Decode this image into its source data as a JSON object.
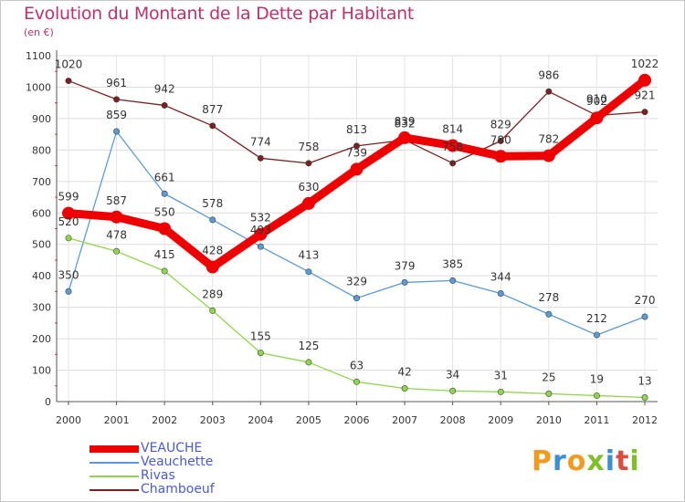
{
  "title": "Evolution du Montant de la Dette par Habitant",
  "subtitle": "(en €)",
  "logo": {
    "text": "Proxiti",
    "colors": [
      "#f39a1e",
      "#3b8fd6",
      "#f39a1e",
      "#7fbf2a",
      "#3b8fd6",
      "#e04a3c",
      "#7fbf2a"
    ]
  },
  "chart_data": {
    "type": "line",
    "title": "Evolution du Montant de la Dette par Habitant",
    "subtitle": "(en €)",
    "xlabel": "",
    "ylabel": "",
    "ylim": [
      0,
      1100
    ],
    "yticks": [
      0,
      100,
      200,
      300,
      400,
      500,
      600,
      700,
      800,
      900,
      1000,
      1100
    ],
    "grid": true,
    "legend_position": "bottom-left",
    "categories": [
      "2000",
      "2001",
      "2002",
      "2003",
      "2004",
      "2005",
      "2006",
      "2007",
      "2008",
      "2009",
      "2010",
      "2011",
      "2012"
    ],
    "series": [
      {
        "name": "VEAUCHE",
        "color": "#ee0000",
        "emphasis": true,
        "values": [
          599,
          587,
          550,
          428,
          532,
          630,
          739,
          839,
          814,
          780,
          782,
          902,
          1022
        ],
        "labels": [
          "599",
          "587",
          "550",
          "428",
          "532",
          "630",
          "739",
          "839",
          "814",
          "780",
          "782",
          "902",
          "1022"
        ]
      },
      {
        "name": "Veauchette",
        "color": "#5b9bd5",
        "values": [
          350,
          859,
          661,
          578,
          493,
          413,
          329,
          379,
          385,
          344,
          278,
          212,
          270
        ],
        "labels": [
          "350",
          "859",
          "661",
          "578",
          "493",
          "413",
          "329",
          "379",
          "385",
          "344",
          "278",
          "212",
          "270"
        ]
      },
      {
        "name": "Rivas",
        "color": "#8fd64a",
        "values": [
          520,
          478,
          415,
          289,
          155,
          125,
          63,
          42,
          34,
          31,
          25,
          19,
          13
        ],
        "labels": [
          "520",
          "478",
          "415",
          "289",
          "155",
          "125",
          "63",
          "42",
          "34",
          "31",
          "25",
          "19",
          "13"
        ]
      },
      {
        "name": "Chamboeuf",
        "color": "#7a2020",
        "values": [
          1020,
          961,
          942,
          877,
          774,
          758,
          813,
          832,
          758,
          829,
          986,
          910,
          921
        ],
        "labels": [
          "1020",
          "961",
          "942",
          "877",
          "774",
          "758",
          "813",
          "832",
          "758",
          "829",
          "986",
          "910",
          "921"
        ]
      }
    ]
  }
}
